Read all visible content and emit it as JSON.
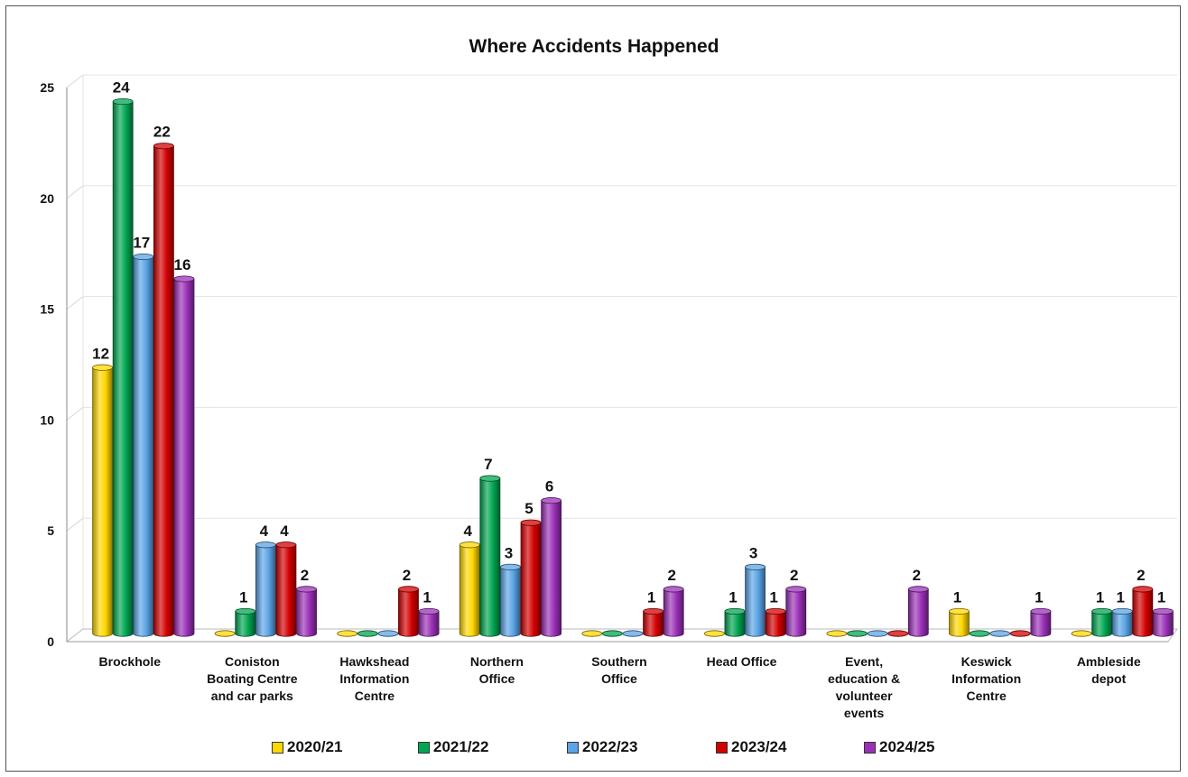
{
  "chart_data": {
    "type": "bar",
    "title": "Where Accidents Happened",
    "xlabel": "",
    "ylabel": "",
    "ylim": [
      0,
      25
    ],
    "yticks": [
      "0",
      "5",
      "10",
      "15",
      "20",
      "25"
    ],
    "categories": [
      [
        "Brockhole"
      ],
      [
        "Coniston",
        "Boating Centre",
        "and car parks"
      ],
      [
        "Hawkshead",
        "Information",
        "Centre"
      ],
      [
        "Northern",
        "Office"
      ],
      [
        "Southern",
        "Office"
      ],
      [
        "Head Office"
      ],
      [
        "Event,",
        "education &",
        "volunteer",
        "events"
      ],
      [
        "Keswick",
        "Information",
        "Centre"
      ],
      [
        "Ambleside",
        "depot"
      ]
    ],
    "series": [
      {
        "name": "2020/21",
        "color": "#FFD700",
        "values": [
          12,
          0,
          0,
          4,
          0,
          0,
          0,
          1,
          0
        ]
      },
      {
        "name": "2021/22",
        "color": "#00A651",
        "values": [
          24,
          1,
          0,
          7,
          0,
          1,
          0,
          0,
          1
        ]
      },
      {
        "name": "2022/23",
        "color": "#5BA4E6",
        "values": [
          17,
          4,
          0,
          3,
          0,
          3,
          0,
          0,
          1
        ]
      },
      {
        "name": "2023/24",
        "color": "#D40000",
        "values": [
          22,
          4,
          2,
          5,
          1,
          1,
          0,
          0,
          2
        ]
      },
      {
        "name": "2024/25",
        "color": "#9B30B8",
        "values": [
          16,
          2,
          1,
          6,
          2,
          2,
          2,
          1,
          1
        ]
      }
    ],
    "legend_position": "bottom",
    "grid": true
  }
}
